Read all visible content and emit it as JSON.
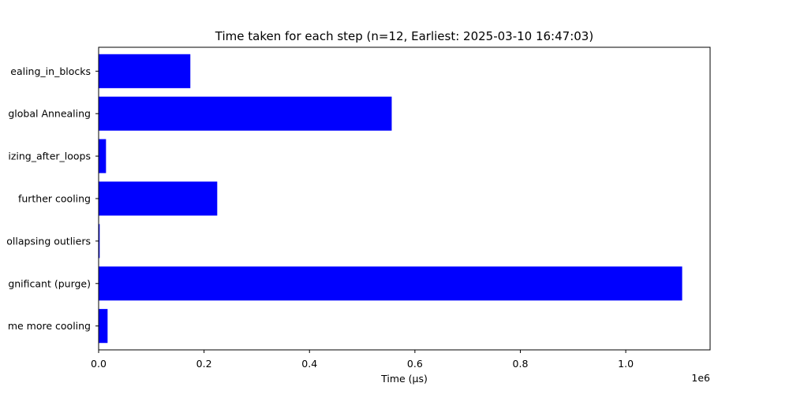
{
  "chart_data": {
    "type": "bar",
    "orientation": "horizontal",
    "title": "Time taken for each step (n=12, Earliest: 2025-03-10 16:47:03)",
    "xlabel": "Time (µs)",
    "ylabel": "",
    "x_scale_label": "1e6",
    "xlim": [
      0,
      1160000
    ],
    "x_ticks": [
      0,
      200000,
      400000,
      600000,
      800000,
      1000000
    ],
    "x_tick_labels": [
      "0.0",
      "0.2",
      "0.4",
      "0.6",
      "0.8",
      "1.0"
    ],
    "categories": [
      "ealing_in_blocks",
      "global Annealing",
      "izing_after_loops",
      "further cooling",
      "ollapsing outliers",
      "gnificant (purge)",
      "me more cooling"
    ],
    "values": [
      174000,
      556000,
      14000,
      225000,
      2000,
      1107000,
      17000
    ],
    "bar_color": "#0000ff",
    "grid": false,
    "legend": "none"
  }
}
